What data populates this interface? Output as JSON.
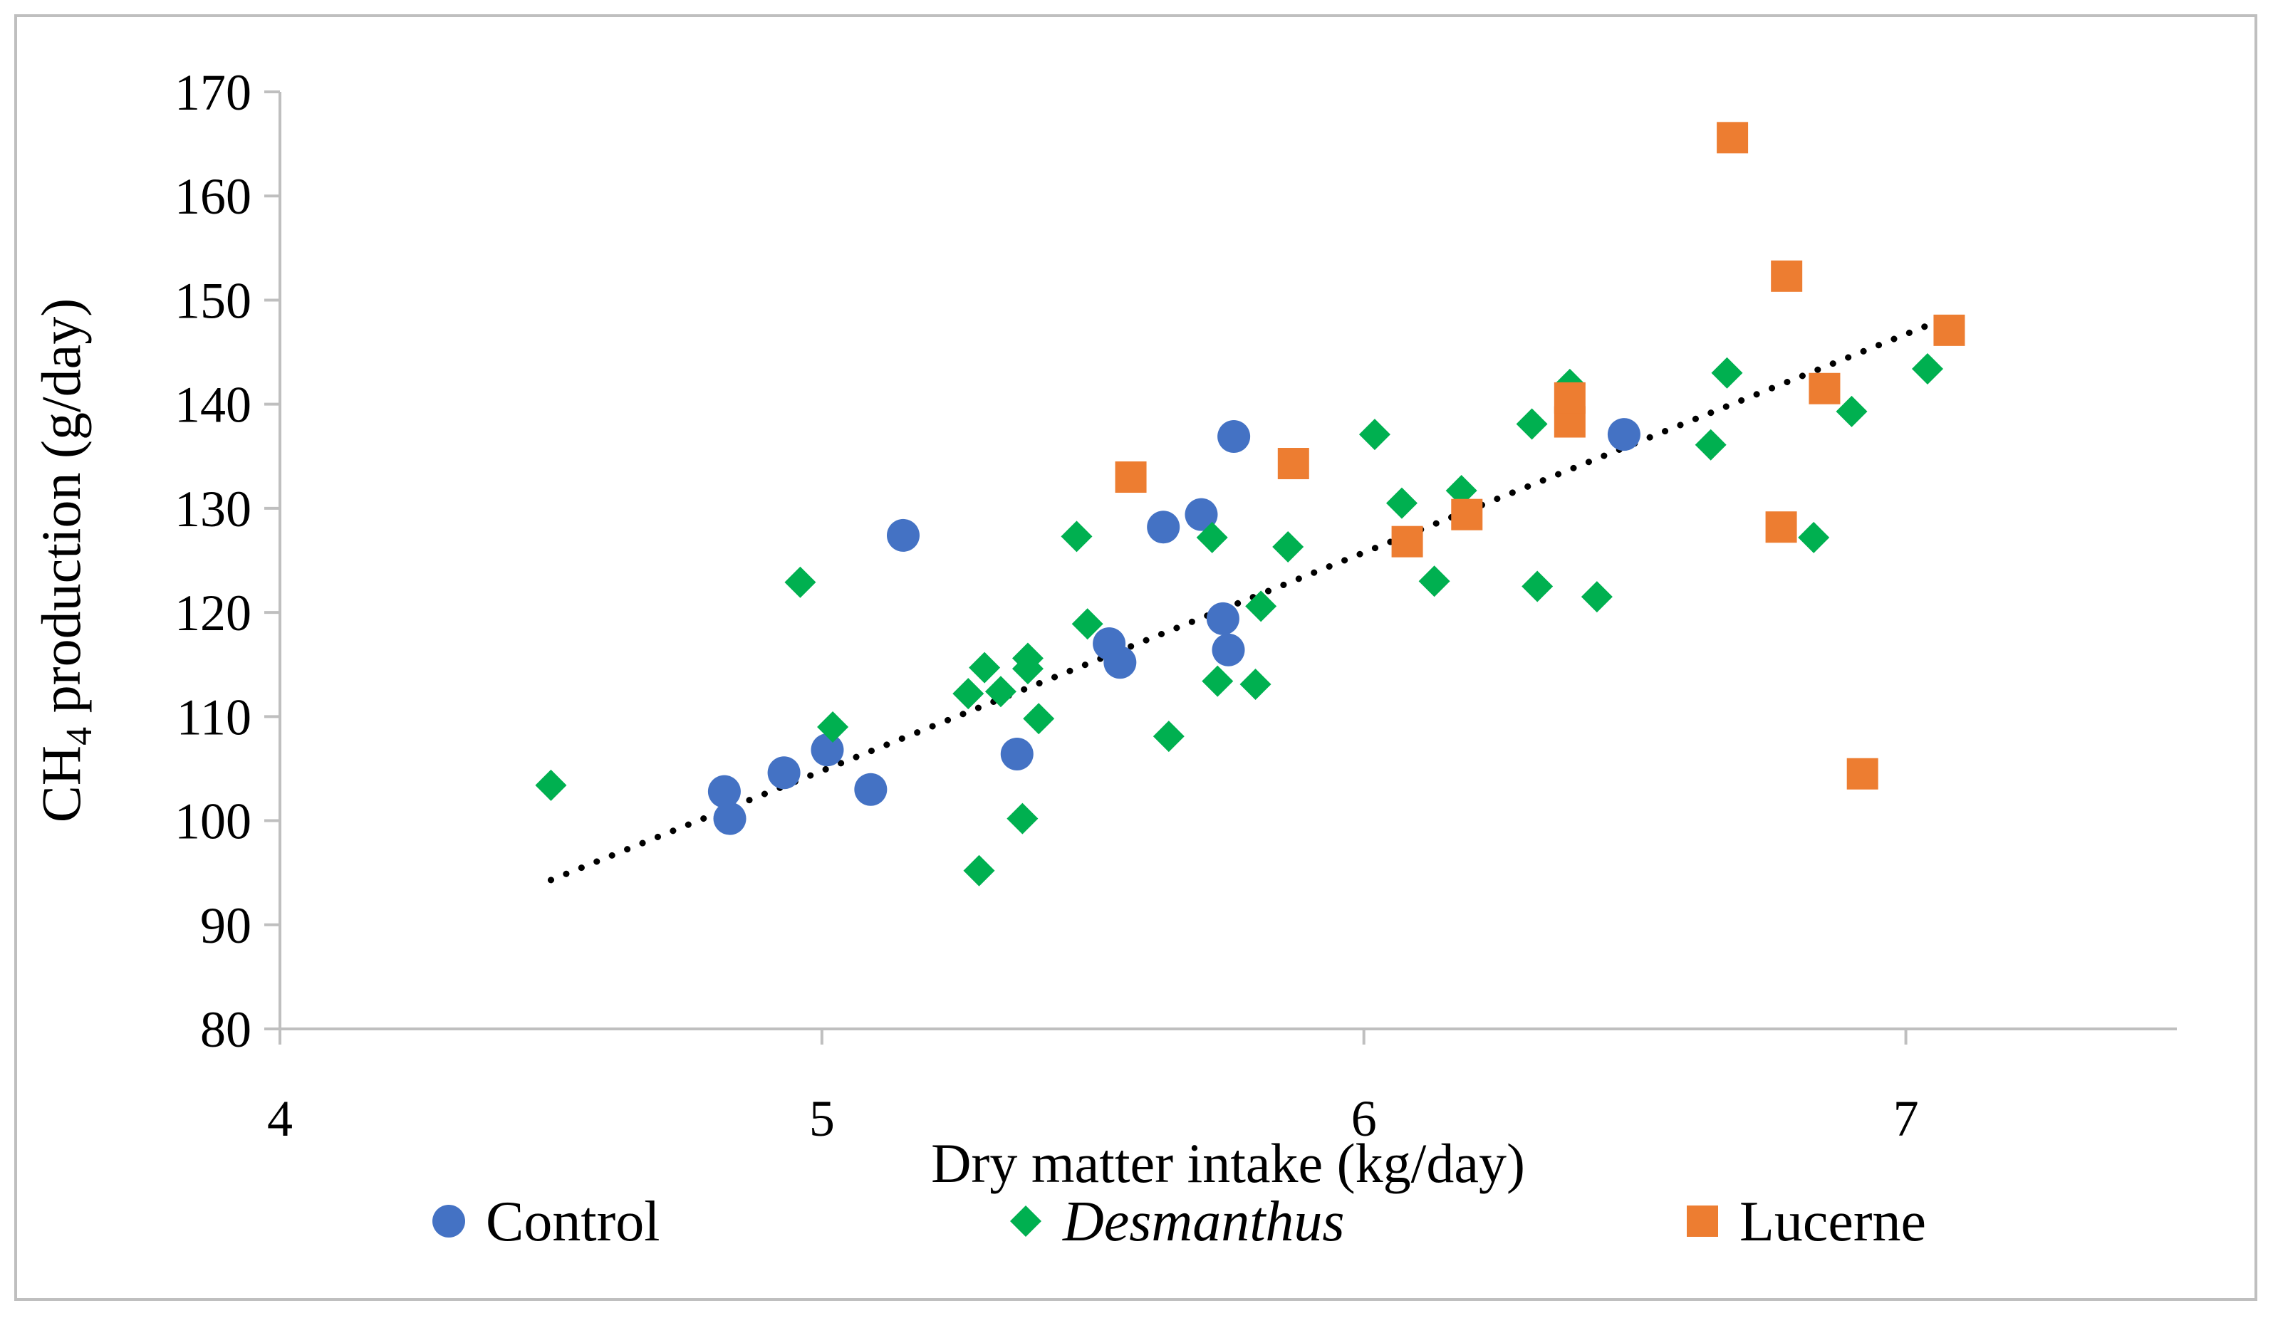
{
  "chart_data": {
    "type": "scatter",
    "title": "",
    "xlabel": "Dry matter intake (kg/day)",
    "ylabel": {
      "prefix": "CH",
      "subscript": "4",
      "suffix": " production (g/day)"
    },
    "xlim": [
      4,
      7.5
    ],
    "ylim": [
      80,
      170
    ],
    "xticks": [
      4,
      5,
      6,
      7
    ],
    "yticks": [
      80,
      90,
      100,
      110,
      120,
      130,
      140,
      150,
      160,
      170
    ],
    "grid": false,
    "legend_position": "bottom",
    "series": [
      {
        "name": "Control",
        "marker": "circle",
        "color": "#4472C4",
        "italic": false,
        "points": [
          [
            4.82,
            102.8
          ],
          [
            4.83,
            100.2
          ],
          [
            4.93,
            104.6
          ],
          [
            5.01,
            106.8
          ],
          [
            5.09,
            103.0
          ],
          [
            5.15,
            127.4
          ],
          [
            5.36,
            106.4
          ],
          [
            5.53,
            117.0
          ],
          [
            5.55,
            115.2
          ],
          [
            5.63,
            128.2
          ],
          [
            5.7,
            129.4
          ],
          [
            5.74,
            119.4
          ],
          [
            5.75,
            116.4
          ],
          [
            5.76,
            136.9
          ],
          [
            6.48,
            137.1
          ]
        ]
      },
      {
        "name": "Desmanthus",
        "marker": "diamond",
        "color": "#00B050",
        "italic": true,
        "points": [
          [
            4.5,
            103.4
          ],
          [
            4.96,
            122.9
          ],
          [
            5.02,
            109.0
          ],
          [
            5.27,
            112.2
          ],
          [
            5.29,
            95.2
          ],
          [
            5.3,
            114.7
          ],
          [
            5.33,
            112.4
          ],
          [
            5.37,
            100.2
          ],
          [
            5.38,
            115.6
          ],
          [
            5.38,
            114.6
          ],
          [
            5.4,
            109.8
          ],
          [
            5.47,
            127.3
          ],
          [
            5.49,
            118.9
          ],
          [
            5.64,
            108.1
          ],
          [
            5.72,
            127.2
          ],
          [
            5.73,
            113.4
          ],
          [
            5.8,
            113.1
          ],
          [
            5.81,
            120.6
          ],
          [
            5.86,
            126.3
          ],
          [
            6.02,
            137.1
          ],
          [
            6.07,
            130.5
          ],
          [
            6.13,
            123.0
          ],
          [
            6.18,
            131.7
          ],
          [
            6.31,
            138.1
          ],
          [
            6.32,
            122.5
          ],
          [
            6.38,
            141.9
          ],
          [
            6.43,
            121.5
          ],
          [
            6.64,
            136.1
          ],
          [
            6.67,
            143.0
          ],
          [
            6.83,
            127.2
          ],
          [
            6.9,
            139.3
          ],
          [
            7.04,
            143.4
          ]
        ]
      },
      {
        "name": "Lucerne",
        "marker": "square",
        "color": "#ED7D31",
        "italic": false,
        "points": [
          [
            5.57,
            133.0
          ],
          [
            5.87,
            134.3
          ],
          [
            6.08,
            126.8
          ],
          [
            6.19,
            129.4
          ],
          [
            6.38,
            138.3
          ],
          [
            6.38,
            140.6
          ],
          [
            6.68,
            165.6
          ],
          [
            6.77,
            128.2
          ],
          [
            6.78,
            152.3
          ],
          [
            6.85,
            141.5
          ],
          [
            6.92,
            104.5
          ],
          [
            7.08,
            147.1
          ]
        ]
      }
    ],
    "trendline": {
      "style": "dotted",
      "color": "#000000",
      "x": [
        4.5,
        7.08
      ],
      "y": [
        94.3,
        148.4
      ]
    }
  }
}
